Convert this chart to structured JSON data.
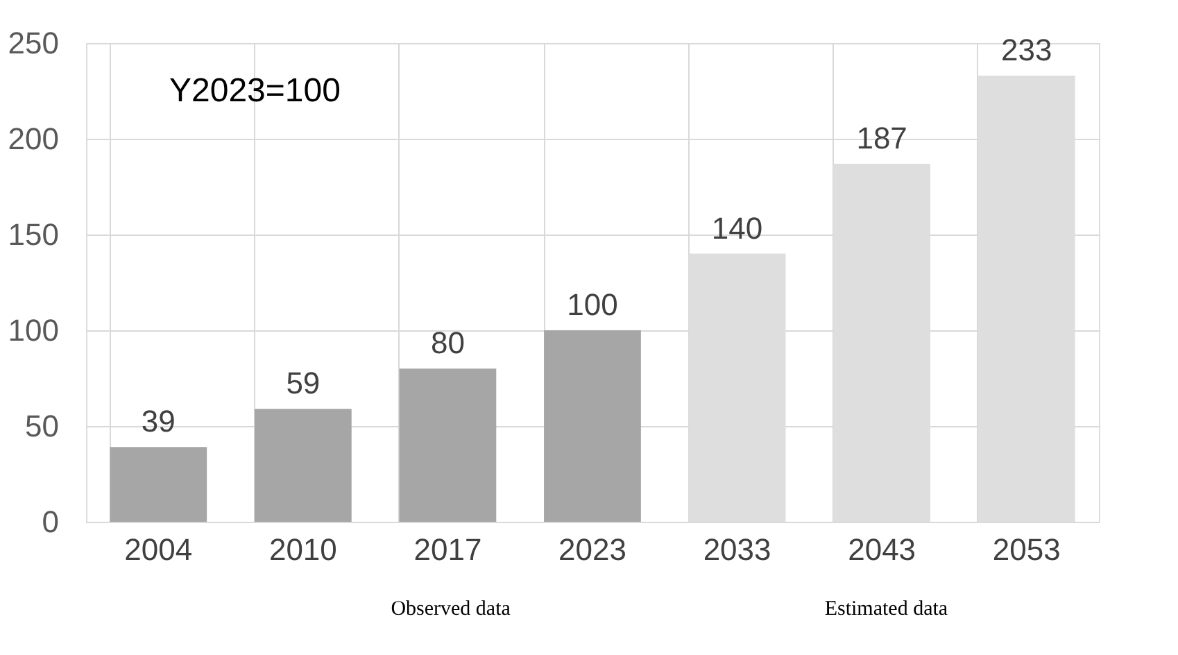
{
  "chart_data": {
    "type": "bar",
    "categories": [
      "2004",
      "2010",
      "2017",
      "2023",
      "2033",
      "2043",
      "2053"
    ],
    "values": [
      39,
      59,
      80,
      100,
      140,
      187,
      233
    ],
    "colors": [
      "#a6a6a6",
      "#a6a6a6",
      "#a6a6a6",
      "#a6a6a6",
      "#dedede",
      "#dedede",
      "#dedede"
    ],
    "ylim": [
      0,
      250
    ],
    "yticks": [
      0,
      50,
      100,
      150,
      200,
      250
    ],
    "grid": true,
    "data_labels": true,
    "annotations": [
      "Y2023=100",
      "Observed data",
      "Estimated data"
    ]
  }
}
